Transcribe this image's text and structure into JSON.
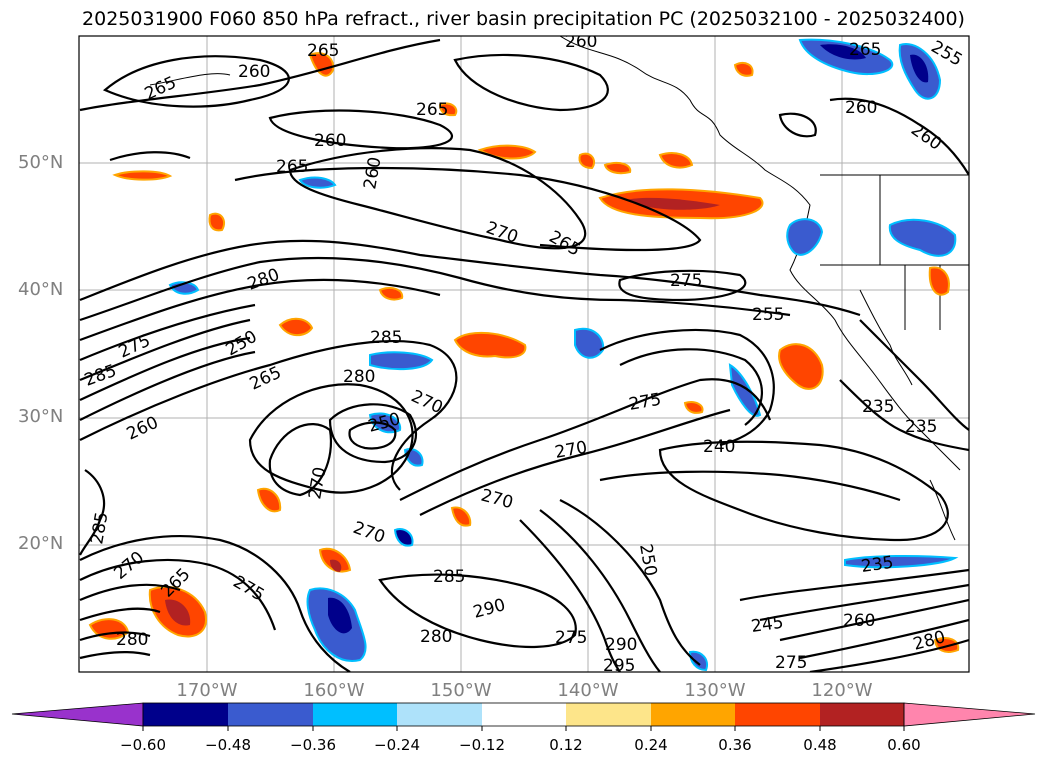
{
  "title": "2025031900 F060 850 hPa refract., river basin precipitation PC (2025032100 - 2025032400)",
  "map": {
    "lat_labels": [
      "50°N",
      "40°N",
      "30°N",
      "20°N"
    ],
    "lon_labels": [
      "170°W",
      "160°W",
      "150°W",
      "140°W",
      "130°W",
      "120°W"
    ],
    "contour_labels": [
      "265",
      "260",
      "265",
      "260",
      "265",
      "260",
      "260",
      "265",
      "270",
      "265",
      "275",
      "280",
      "250",
      "285",
      "255",
      "265",
      "280",
      "275",
      "270",
      "285",
      "260",
      "250",
      "275",
      "270",
      "240",
      "235",
      "235",
      "270",
      "285",
      "270",
      "275",
      "285",
      "290",
      "275",
      "280",
      "290",
      "295",
      "245",
      "260",
      "280",
      "270",
      "265",
      "280",
      "235",
      "250",
      "270",
      "260",
      "265",
      "255",
      "260",
      "275"
    ]
  },
  "colorbar": {
    "ticks": [
      "−0.60",
      "−0.48",
      "−0.36",
      "−0.24",
      "−0.12",
      "0.12",
      "0.24",
      "0.36",
      "0.48",
      "0.60"
    ],
    "colors": [
      "#9932cc",
      "#00008b",
      "#3a5bcf",
      "#00bfff",
      "#aee2fa",
      "#ffffff",
      "#fde58a",
      "#ffa500",
      "#ff4500",
      "#b22222",
      "#ff85ad"
    ]
  }
}
